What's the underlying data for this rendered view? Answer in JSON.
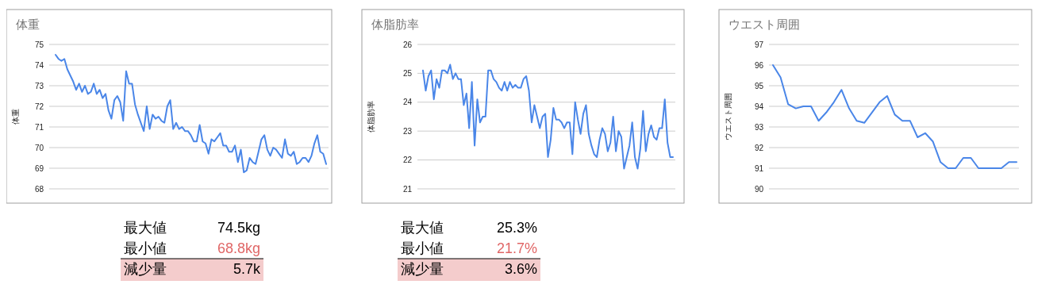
{
  "chart_data": [
    {
      "type": "line",
      "title": "体重",
      "ylabel": "体重",
      "color": "#4a86e8",
      "grid": "y",
      "ylim": [
        68,
        75
      ],
      "yticks": [
        68,
        69,
        70,
        71,
        72,
        73,
        74,
        75
      ],
      "tick_labels": "y",
      "categories": [
        null,
        null,
        null,
        null,
        null,
        null,
        null,
        null,
        null,
        null,
        null,
        null,
        null,
        null,
        null,
        null,
        null,
        null,
        null,
        null,
        null,
        null,
        null,
        null,
        null,
        null,
        null,
        null,
        null,
        null,
        null,
        null,
        null,
        null,
        null,
        null,
        null,
        null,
        null,
        null,
        null,
        null,
        null,
        null,
        null,
        null,
        null,
        null,
        null,
        null,
        null,
        null,
        null,
        null,
        null,
        null,
        null,
        null,
        null,
        null,
        null,
        null,
        null,
        null,
        null,
        null,
        null,
        null,
        null,
        null,
        null,
        null,
        null,
        null,
        null,
        null,
        null,
        null,
        null,
        null,
        null,
        null,
        null,
        null,
        null,
        null,
        null,
        null,
        null,
        null,
        null,
        null,
        null
      ],
      "values": [
        74.5,
        74.3,
        74.2,
        74.3,
        73.8,
        73.5,
        73.2,
        72.8,
        73.1,
        72.7,
        73.0,
        72.6,
        72.7,
        73.1,
        72.6,
        72.8,
        72.4,
        72.6,
        71.8,
        71.4,
        72.3,
        72.5,
        72.2,
        71.3,
        73.7,
        73.1,
        73.1,
        72.1,
        71.6,
        71.2,
        70.8,
        72.0,
        70.9,
        71.6,
        71.4,
        71.5,
        71.3,
        71.2,
        72.0,
        72.3,
        70.9,
        71.2,
        70.9,
        71.0,
        70.8,
        70.8,
        70.6,
        70.3,
        70.3,
        71.1,
        70.3,
        70.2,
        69.7,
        70.4,
        70.3,
        70.5,
        70.7,
        70.1,
        70.1,
        69.8,
        69.8,
        70.1,
        69.3,
        69.9,
        68.8,
        68.9,
        69.5,
        69.3,
        69.2,
        69.8,
        70.4,
        70.6,
        69.9,
        69.6,
        70.0,
        69.9,
        69.7,
        69.5,
        70.4,
        69.7,
        69.6,
        69.8,
        69.2,
        69.3,
        69.5,
        69.5,
        69.3,
        69.6,
        70.2,
        70.6,
        69.8,
        69.7,
        69.2
      ]
    },
    {
      "type": "line",
      "title": "体脂肪率",
      "ylabel": "体脂肪率",
      "color": "#4a86e8",
      "grid": "y",
      "ylim": [
        21,
        26
      ],
      "yticks": [
        21,
        22,
        23,
        24,
        25,
        26
      ],
      "tick_labels": "y",
      "categories": [
        null,
        null,
        null,
        null,
        null,
        null,
        null,
        null,
        null,
        null,
        null,
        null,
        null,
        null,
        null,
        null,
        null,
        null,
        null,
        null,
        null,
        null,
        null,
        null,
        null,
        null,
        null,
        null,
        null,
        null,
        null,
        null,
        null,
        null,
        null,
        null,
        null,
        null,
        null,
        null,
        null,
        null,
        null,
        null,
        null,
        null,
        null,
        null,
        null,
        null,
        null,
        null,
        null,
        null,
        null,
        null,
        null,
        null,
        null,
        null,
        null,
        null,
        null,
        null,
        null,
        null,
        null,
        null,
        null,
        null,
        null,
        null,
        null,
        null,
        null,
        null,
        null,
        null,
        null,
        null,
        null,
        null,
        null,
        null,
        null,
        null,
        null,
        null,
        null,
        null,
        null,
        null,
        null
      ],
      "values": [
        25.1,
        24.4,
        24.9,
        25.1,
        24.1,
        24.8,
        24.5,
        25.1,
        25.1,
        25.0,
        25.3,
        24.8,
        25.0,
        24.8,
        24.8,
        23.9,
        24.3,
        23.1,
        24.7,
        22.5,
        24.1,
        23.3,
        23.5,
        23.5,
        25.1,
        25.1,
        24.8,
        24.7,
        24.5,
        24.4,
        24.7,
        24.4,
        24.7,
        24.5,
        24.6,
        24.5,
        24.5,
        24.8,
        24.9,
        24.4,
        23.3,
        23.9,
        23.5,
        23.1,
        23.5,
        23.6,
        22.1,
        22.7,
        23.8,
        23.4,
        23.4,
        23.3,
        23.1,
        23.3,
        23.3,
        22.2,
        24.0,
        23.4,
        22.9,
        23.6,
        23.9,
        22.9,
        22.5,
        22.2,
        22.1,
        22.7,
        23.1,
        22.9,
        22.3,
        22.6,
        23.5,
        22.3,
        23.0,
        22.8,
        21.7,
        22.1,
        22.5,
        23.3,
        22.1,
        21.7,
        22.4,
        23.7,
        22.3,
        22.9,
        23.2,
        22.8,
        22.7,
        23.1,
        23.1,
        24.1,
        22.6,
        22.1,
        22.1
      ]
    },
    {
      "type": "line",
      "title": "ウエスト周囲",
      "ylabel": "ウエスト周囲",
      "color": "#4a86e8",
      "grid": "y",
      "ylim": [
        90,
        97
      ],
      "yticks": [
        90,
        91,
        92,
        93,
        94,
        95,
        96,
        97
      ],
      "tick_labels": "y",
      "categories": [
        null,
        null,
        null,
        null,
        null,
        null,
        null,
        null,
        null,
        null,
        null,
        null,
        null,
        null,
        null,
        null,
        null,
        null,
        null,
        null,
        null,
        null,
        null,
        null,
        null,
        null,
        null,
        null,
        null,
        null,
        null,
        null,
        null
      ],
      "values": [
        96.0,
        95.4,
        94.1,
        93.9,
        94.0,
        94.0,
        93.3,
        93.7,
        94.2,
        94.8,
        93.9,
        93.3,
        93.2,
        93.7,
        94.2,
        94.5,
        93.6,
        93.3,
        93.3,
        92.5,
        92.7,
        92.3,
        91.3,
        91.0,
        91.0,
        91.5,
        91.5,
        91.0,
        91.0,
        91.0,
        91.0,
        91.3,
        91.3
      ]
    },
    {
      "type": "other",
      "annotations": [
        "最大値",
        "74.5kg",
        "最小値",
        "68.8kg",
        "減少量",
        "5.7k"
      ]
    },
    {
      "type": "other",
      "annotations": [
        "最大値",
        "25.3%",
        "最小値",
        "21.7%",
        "減少量",
        "3.6%"
      ]
    }
  ]
}
